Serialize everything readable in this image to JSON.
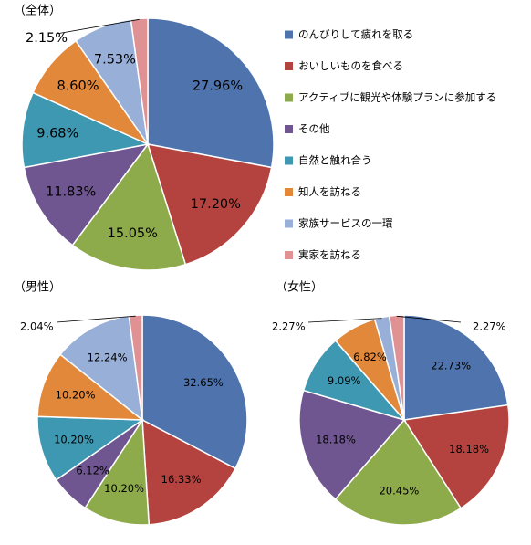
{
  "colors": [
    "#4f74ad",
    "#b4433f",
    "#8eab4c",
    "#6f5690",
    "#3e98b1",
    "#e2883a",
    "#98afd8",
    "#df9194"
  ],
  "legend": [
    "のんびりして疲れを取る",
    "おいしいものを食べる",
    "アクティブに観光や体験プランに参加する",
    "その他",
    "自然と触れ合う",
    "知人を訪ねる",
    "家族サービスの一環",
    "実家を訪ねる"
  ],
  "chart_data": [
    {
      "type": "pie",
      "title": "（全体）",
      "values": [
        27.96,
        17.2,
        15.05,
        11.83,
        9.68,
        8.6,
        7.53,
        2.15
      ],
      "labels": [
        "27.96%",
        "17.20%",
        "15.05%",
        "11.83%",
        "9.68%",
        "8.60%",
        "7.53%",
        "2.15%"
      ]
    },
    {
      "type": "pie",
      "title": "（男性）",
      "values": [
        32.65,
        16.33,
        10.2,
        6.12,
        10.2,
        10.2,
        12.24,
        2.04
      ],
      "labels": [
        "32.65%",
        "16.33%",
        "10.20%",
        "6.12%",
        "10.20%",
        "10.20%",
        "12.24%",
        "2.04%"
      ]
    },
    {
      "type": "pie",
      "title": "（女性）",
      "values": [
        22.73,
        18.18,
        20.45,
        18.18,
        9.09,
        6.82,
        2.27,
        2.27
      ],
      "labels": [
        "22.73%",
        "18.18%",
        "20.45%",
        "18.18%",
        "9.09%",
        "6.82%",
        "2.27%",
        "2.27%"
      ]
    }
  ]
}
